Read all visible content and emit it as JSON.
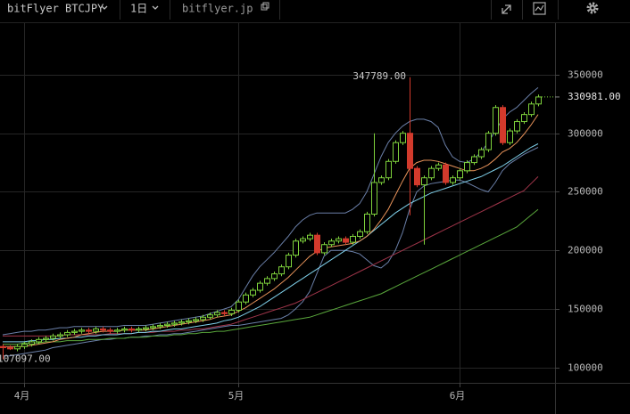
{
  "header": {
    "symbol": "bitFlyer BTCJPY",
    "interval": "1日",
    "site": "bitflyer.jp"
  },
  "chart_data": {
    "type": "candlestick",
    "categories": [
      null,
      null,
      null,
      "4月",
      null,
      null,
      null,
      null,
      null,
      null,
      null,
      null,
      null,
      null,
      null,
      null,
      null,
      null,
      null,
      null,
      null,
      null,
      null,
      null,
      null,
      null,
      null,
      null,
      null,
      null,
      null,
      null,
      null,
      "5月",
      null,
      null,
      null,
      null,
      null,
      null,
      null,
      null,
      null,
      null,
      null,
      null,
      null,
      null,
      null,
      null,
      null,
      null,
      null,
      null,
      null,
      null,
      null,
      null,
      null,
      null,
      null,
      null,
      null,
      null,
      "6月",
      null,
      null,
      null,
      null,
      null,
      null,
      null,
      null,
      null,
      null,
      null
    ],
    "open": [
      118000,
      117000,
      116000,
      118000,
      120000,
      122000,
      124000,
      125000,
      127000,
      128000,
      130000,
      131000,
      132000,
      131000,
      133000,
      132000,
      131000,
      132000,
      133000,
      132000,
      133000,
      134000,
      135000,
      136000,
      137000,
      138000,
      139000,
      140000,
      141000,
      143000,
      145000,
      147000,
      146000,
      149000,
      156000,
      162000,
      166000,
      172000,
      176000,
      180000,
      186000,
      196000,
      208000,
      210000,
      213000,
      198000,
      205000,
      208000,
      210000,
      207000,
      212000,
      216000,
      231000,
      258000,
      262000,
      276000,
      292000,
      300000,
      270000,
      256000,
      262000,
      270000,
      273000,
      258000,
      262000,
      268000,
      275000,
      280000,
      286000,
      300000,
      322000,
      292000,
      302000,
      310000,
      316000,
      325000
    ],
    "high": [
      120000,
      119000,
      120000,
      122000,
      124000,
      126000,
      127000,
      129000,
      130000,
      132000,
      133000,
      134000,
      134000,
      135000,
      135000,
      134000,
      134000,
      135000,
      135000,
      135000,
      136000,
      137000,
      138000,
      139000,
      140000,
      141000,
      142000,
      143000,
      145000,
      147000,
      149000,
      149000,
      151000,
      158000,
      164000,
      168000,
      174000,
      178000,
      182000,
      188000,
      198000,
      210000,
      212000,
      215000,
      215000,
      207000,
      210000,
      212000,
      212000,
      214000,
      218000,
      233000,
      300000,
      264000,
      278000,
      294000,
      302000,
      347789,
      272000,
      264000,
      272000,
      275000,
      275000,
      264000,
      270000,
      277000,
      282000,
      288000,
      302000,
      324000,
      324000,
      304000,
      312000,
      318000,
      327000,
      333000
    ],
    "low": [
      107097,
      115000,
      114000,
      116000,
      118000,
      120000,
      122000,
      123000,
      125000,
      126000,
      128000,
      129000,
      129000,
      129000,
      130000,
      129000,
      129000,
      130000,
      130000,
      130000,
      131000,
      132000,
      133000,
      134000,
      135000,
      136000,
      137000,
      138000,
      139000,
      141000,
      143000,
      144000,
      144000,
      147000,
      154000,
      160000,
      164000,
      170000,
      174000,
      178000,
      184000,
      194000,
      206000,
      208000,
      196000,
      196000,
      203000,
      206000,
      205000,
      205000,
      210000,
      214000,
      229000,
      256000,
      260000,
      274000,
      290000,
      230000,
      254000,
      205000,
      260000,
      268000,
      256000,
      256000,
      260000,
      266000,
      273000,
      278000,
      284000,
      298000,
      290000,
      290000,
      300000,
      308000,
      314000,
      323000
    ],
    "close": [
      117000,
      116000,
      118000,
      120000,
      122000,
      124000,
      125000,
      127000,
      128000,
      130000,
      131000,
      132000,
      131000,
      133000,
      132000,
      131000,
      132000,
      133000,
      132000,
      133000,
      134000,
      135000,
      136000,
      137000,
      138000,
      139000,
      140000,
      141000,
      143000,
      145000,
      147000,
      146000,
      149000,
      156000,
      162000,
      166000,
      172000,
      176000,
      180000,
      186000,
      196000,
      208000,
      210000,
      213000,
      198000,
      205000,
      208000,
      210000,
      207000,
      212000,
      216000,
      231000,
      258000,
      262000,
      276000,
      292000,
      300000,
      270000,
      256000,
      262000,
      270000,
      273000,
      258000,
      262000,
      268000,
      275000,
      280000,
      286000,
      300000,
      322000,
      292000,
      302000,
      310000,
      316000,
      325000,
      330981
    ],
    "up_color": "#7ed23c",
    "down_color": "#d23a2c",
    "series": [
      {
        "color": "#6a7fa8",
        "values": [
          128000,
          129000,
          130000,
          131000,
          131000,
          132000,
          132000,
          133000,
          134000,
          134000,
          135000,
          135000,
          135000,
          135000,
          135000,
          135000,
          135000,
          136000,
          136000,
          136000,
          136000,
          137000,
          138000,
          139000,
          140000,
          141000,
          142000,
          143000,
          144000,
          146000,
          148000,
          150000,
          152000,
          158000,
          168000,
          178000,
          186000,
          192000,
          198000,
          205000,
          212000,
          220000,
          226000,
          230000,
          232000,
          232000,
          232000,
          232000,
          232000,
          235000,
          240000,
          250000,
          265000,
          280000,
          292000,
          300000,
          306000,
          310000,
          312000,
          312000,
          310000,
          305000,
          290000,
          280000,
          276000,
          275000,
          278000,
          284000,
          292000,
          302000,
          312000,
          318000,
          322000,
          328000,
          334000,
          339000
        ]
      },
      {
        "color": "#6a7fa8",
        "values": [
          110000,
          110000,
          111000,
          112000,
          113000,
          114000,
          115000,
          117000,
          118000,
          119000,
          120000,
          121000,
          122000,
          123000,
          124000,
          124000,
          125000,
          125000,
          126000,
          126000,
          127000,
          127000,
          128000,
          128000,
          129000,
          129000,
          130000,
          131000,
          132000,
          133000,
          134000,
          135000,
          136000,
          136000,
          137000,
          138000,
          139000,
          140000,
          141000,
          142000,
          145000,
          150000,
          156000,
          165000,
          180000,
          195000,
          200000,
          200000,
          200000,
          199000,
          197000,
          192000,
          187000,
          185000,
          190000,
          200000,
          215000,
          235000,
          250000,
          255000,
          257000,
          258000,
          259000,
          260000,
          260000,
          258000,
          255000,
          252000,
          250000,
          258000,
          268000,
          274000,
          278000,
          282000,
          285000,
          288000
        ]
      },
      {
        "color": "#5aa83c",
        "values": [
          120000,
          120000,
          120000,
          121000,
          121000,
          121000,
          122000,
          122000,
          122000,
          123000,
          123000,
          123000,
          124000,
          124000,
          124000,
          125000,
          125000,
          125000,
          126000,
          126000,
          126000,
          127000,
          127000,
          127000,
          128000,
          128000,
          129000,
          129000,
          130000,
          130000,
          131000,
          131000,
          132000,
          133000,
          134000,
          135000,
          136000,
          137000,
          138000,
          139000,
          140000,
          141000,
          142000,
          143000,
          145000,
          147000,
          149000,
          151000,
          153000,
          155000,
          157000,
          159000,
          161000,
          163000,
          166000,
          169000,
          172000,
          175000,
          178000,
          181000,
          184000,
          187000,
          190000,
          193000,
          196000,
          199000,
          202000,
          205000,
          208000,
          211000,
          214000,
          217000,
          220000,
          225000,
          230000,
          235000
        ]
      },
      {
        "color": "#a0354a",
        "values": [
          127000,
          127000,
          127000,
          127000,
          127000,
          127000,
          127000,
          127000,
          127000,
          128000,
          128000,
          128000,
          128000,
          128000,
          128000,
          129000,
          129000,
          129000,
          129000,
          130000,
          130000,
          130000,
          131000,
          131000,
          131000,
          132000,
          132000,
          133000,
          133000,
          134000,
          135000,
          136000,
          137000,
          139000,
          141000,
          143000,
          145000,
          147000,
          149000,
          151000,
          153000,
          155000,
          158000,
          161000,
          164000,
          167000,
          170000,
          173000,
          176000,
          179000,
          182000,
          185000,
          188000,
          191000,
          194000,
          197000,
          200000,
          203000,
          206000,
          209000,
          212000,
          215000,
          218000,
          221000,
          224000,
          227000,
          230000,
          233000,
          236000,
          239000,
          242000,
          245000,
          248000,
          251000,
          257000,
          263000
        ]
      },
      {
        "color": "#7fd0ea",
        "values": [
          122000,
          122000,
          122000,
          122000,
          123000,
          123000,
          124000,
          124000,
          125000,
          125000,
          126000,
          126000,
          127000,
          127000,
          128000,
          128000,
          128000,
          129000,
          129000,
          130000,
          130000,
          131000,
          131000,
          132000,
          133000,
          133000,
          134000,
          135000,
          136000,
          137000,
          138000,
          140000,
          141000,
          143000,
          146000,
          149000,
          152000,
          156000,
          160000,
          164000,
          168000,
          172000,
          176000,
          180000,
          184000,
          188000,
          192000,
          196000,
          200000,
          204000,
          208000,
          212000,
          217000,
          222000,
          227000,
          232000,
          236000,
          240000,
          243000,
          246000,
          249000,
          251000,
          253000,
          255000,
          257000,
          259000,
          261000,
          263000,
          266000,
          269000,
          272000,
          276000,
          280000,
          284000,
          288000,
          291000
        ]
      },
      {
        "color": "#e8935a",
        "values": [
          118000,
          118000,
          118000,
          118000,
          119000,
          120000,
          121000,
          122000,
          124000,
          125000,
          126000,
          128000,
          129000,
          130000,
          131000,
          131000,
          131000,
          132000,
          132000,
          132000,
          132000,
          133000,
          134000,
          135000,
          136000,
          137000,
          138000,
          139000,
          140000,
          141000,
          143000,
          144000,
          145000,
          148000,
          151000,
          155000,
          159000,
          163000,
          167000,
          172000,
          177000,
          183000,
          189000,
          195000,
          199000,
          202000,
          203000,
          204000,
          205000,
          206000,
          208000,
          212000,
          218000,
          226000,
          235000,
          247000,
          259000,
          270000,
          275000,
          277000,
          277000,
          276000,
          274000,
          272000,
          270000,
          268000,
          268000,
          270000,
          273000,
          278000,
          284000,
          287000,
          292000,
          299000,
          307000,
          316000
        ]
      }
    ],
    "annotations": [
      {
        "value": 347789,
        "label": "347789.00"
      },
      {
        "value": 107097,
        "label": "107097.00"
      },
      {
        "value": 330981,
        "label": "330981.00"
      }
    ],
    "ylim": [
      87000,
      394000
    ],
    "yticks": [
      100000,
      150000,
      200000,
      250000,
      300000,
      350000
    ],
    "grid": true
  }
}
